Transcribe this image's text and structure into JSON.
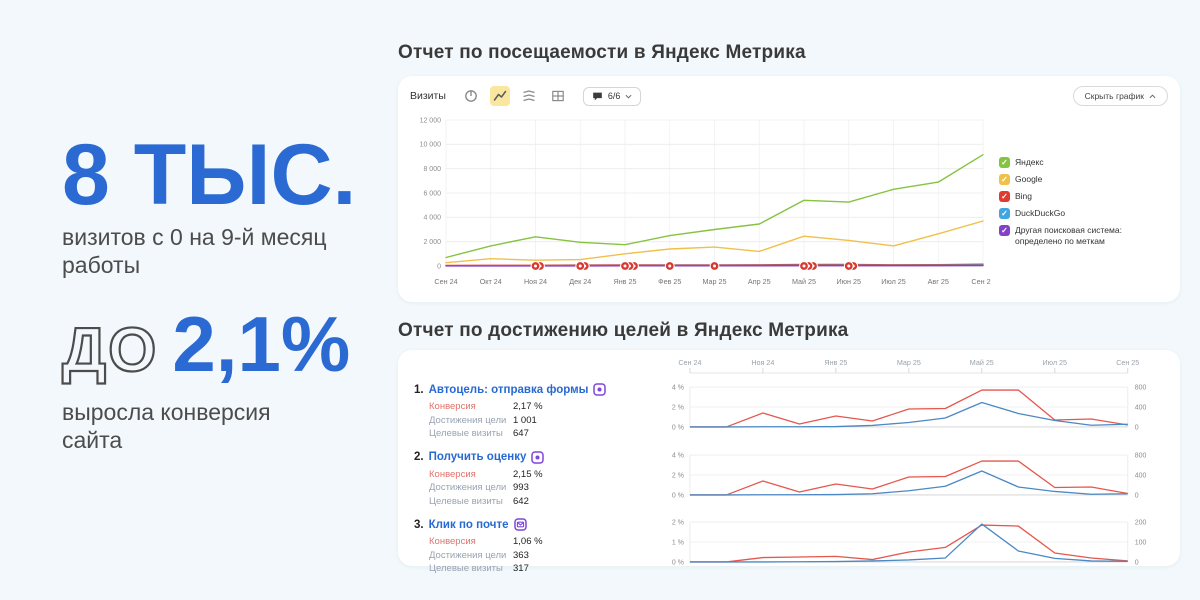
{
  "page": {
    "bg_color": "#f2f8fb",
    "accent_blue": "#2b6ad3"
  },
  "stats": {
    "visits": {
      "value": "8 ТЫС.",
      "caption": "визитов с 0 на 9-й месяц работы"
    },
    "conversion": {
      "prefix": "до",
      "value": "2,1%",
      "caption": "выросла конверсия сайта"
    }
  },
  "visits_report": {
    "title": "Отчет по посещаемости в Яндекс Метрика",
    "metric_label": "Визиты",
    "comments_badge": "6/6",
    "hide_chart_button": "Скрыть график"
  },
  "goals_report": {
    "title": "Отчет по достижению целей в Яндекс Метрика",
    "months": [
      "Сен 24",
      "Ноя 24",
      "Янв 25",
      "Мар 25",
      "Май 25",
      "Июл 25",
      "Сен 25"
    ],
    "goals": [
      {
        "num": "1.",
        "name": "Автоцель: отправка формы",
        "metrics": [
          {
            "label": "Конверсия",
            "value": "2,17 %"
          },
          {
            "label": "Достижения цели",
            "value": "1 001"
          },
          {
            "label": "Целевые визиты",
            "value": "647"
          }
        ]
      },
      {
        "num": "2.",
        "name": "Получить оценку",
        "metrics": [
          {
            "label": "Конверсия",
            "value": "2,15 %"
          },
          {
            "label": "Достижения цели",
            "value": "993"
          },
          {
            "label": "Целевые визиты",
            "value": "642"
          }
        ]
      },
      {
        "num": "3.",
        "name": "Клик по почте",
        "metrics": [
          {
            "label": "Конверсия",
            "value": "1,06 %"
          },
          {
            "label": "Достижения цели",
            "value": "363"
          },
          {
            "label": "Целевые визиты",
            "value": "317"
          }
        ]
      }
    ]
  },
  "chart_data": [
    {
      "kind": "big",
      "type": "line",
      "title": "Визиты",
      "x_labels": [
        "Сен 24",
        "Окт 24",
        "Ноя 24",
        "Дек 24",
        "Янв 25",
        "Фев 25",
        "Мар 25",
        "Апр 25",
        "Май 25",
        "Июн 25",
        "Июл 25",
        "Авг 25",
        "Сен 25"
      ],
      "ymax": 12000,
      "yticks": [
        {
          "v": 0,
          "label": "0"
        },
        {
          "v": 2000,
          "label": "2 000"
        },
        {
          "v": 4000,
          "label": "4 000"
        },
        {
          "v": 6000,
          "label": "6 000"
        },
        {
          "v": 8000,
          "label": "8 000"
        },
        {
          "v": 10000,
          "label": "10 000"
        },
        {
          "v": 12000,
          "label": "12 000"
        }
      ],
      "series": [
        {
          "name": "Яндекс",
          "color": "#85c341",
          "values": [
            700,
            1650,
            2400,
            1950,
            1750,
            2500,
            3000,
            3450,
            5400,
            5250,
            6300,
            6900,
            9150
          ]
        },
        {
          "name": "Google",
          "color": "#f0c04a",
          "values": [
            270,
            600,
            480,
            530,
            1000,
            1400,
            1550,
            1200,
            2450,
            2100,
            1650,
            2650,
            3700
          ]
        },
        {
          "name": "Bing",
          "color": "#e03b30",
          "values": [
            40,
            60,
            60,
            70,
            80,
            90,
            90,
            100,
            130,
            120,
            100,
            110,
            150
          ]
        },
        {
          "name": "DuckDuckGo",
          "color": "#41a6df",
          "values": [
            15,
            25,
            25,
            30,
            35,
            40,
            40,
            45,
            60,
            55,
            50,
            55,
            70
          ]
        },
        {
          "name": "Другая поисковая система: определено по меткам",
          "color": "#8440c9",
          "values": [
            5,
            10,
            10,
            12,
            15,
            18,
            18,
            20,
            28,
            25,
            22,
            25,
            32
          ]
        }
      ],
      "comment_markers": [
        {
          "i": 2,
          "n": 2
        },
        {
          "i": 3,
          "n": 2
        },
        {
          "i": 4,
          "n": 3
        },
        {
          "i": 5,
          "n": 1
        },
        {
          "i": 6,
          "n": 1
        },
        {
          "i": 8,
          "n": 3
        },
        {
          "i": 9,
          "n": 2
        }
      ]
    },
    {
      "kind": "mini",
      "type": "line",
      "goal": "Автоцель: отправка формы",
      "left_max": 4,
      "left_ticks": [
        {
          "v": 4,
          "label": "4 %"
        },
        {
          "v": 2,
          "label": "2 %"
        },
        {
          "v": 0,
          "label": "0 %"
        }
      ],
      "right_max": 800,
      "right_ticks": [
        {
          "v": 800,
          "label": "800"
        },
        {
          "v": 400,
          "label": "400"
        },
        {
          "v": 0,
          "label": "0"
        }
      ],
      "series": [
        {
          "name": "Конверсия",
          "axis": "left",
          "color": "#e4574d",
          "values": [
            0,
            0,
            1.4,
            0.3,
            1.1,
            0.6,
            1.8,
            1.85,
            3.7,
            3.7,
            0.7,
            0.8,
            0.2
          ]
        },
        {
          "name": "Достижения цели",
          "axis": "right",
          "color": "#4b88c4",
          "values": [
            0,
            0,
            4,
            4,
            8,
            30,
            90,
            180,
            490,
            270,
            130,
            35,
            55
          ]
        }
      ]
    },
    {
      "kind": "mini",
      "type": "line",
      "goal": "Получить оценку",
      "left_max": 4,
      "left_ticks": [
        {
          "v": 4,
          "label": "4 %"
        },
        {
          "v": 2,
          "label": "2 %"
        },
        {
          "v": 0,
          "label": "0 %"
        }
      ],
      "right_max": 800,
      "right_ticks": [
        {
          "v": 800,
          "label": "800"
        },
        {
          "v": 400,
          "label": "400"
        },
        {
          "v": 0,
          "label": "0"
        }
      ],
      "series": [
        {
          "name": "Конверсия",
          "axis": "left",
          "color": "#e4574d",
          "values": [
            0,
            0,
            1.4,
            0.3,
            1.1,
            0.6,
            1.8,
            1.85,
            3.4,
            3.4,
            0.75,
            0.8,
            0.15
          ]
        },
        {
          "name": "Достижения цели",
          "axis": "right",
          "color": "#4b88c4",
          "values": [
            0,
            0,
            4,
            4,
            8,
            25,
            85,
            175,
            480,
            160,
            70,
            15,
            25
          ]
        }
      ]
    },
    {
      "kind": "mini",
      "type": "line",
      "goal": "Клик по почте",
      "left_max": 2,
      "left_ticks": [
        {
          "v": 2,
          "label": "2 %"
        },
        {
          "v": 1,
          "label": "1 %"
        },
        {
          "v": 0,
          "label": "0 %"
        }
      ],
      "right_max": 200,
      "right_ticks": [
        {
          "v": 200,
          "label": "200"
        },
        {
          "v": 100,
          "label": "100"
        },
        {
          "v": 0,
          "label": "0"
        }
      ],
      "series": [
        {
          "name": "Конверсия",
          "axis": "left",
          "color": "#e4574d",
          "values": [
            0,
            0,
            0.22,
            0.25,
            0.28,
            0.12,
            0.5,
            0.73,
            1.85,
            1.8,
            0.45,
            0.2,
            0.05
          ]
        },
        {
          "name": "Достижения цели",
          "axis": "right",
          "color": "#4b88c4",
          "values": [
            0,
            0,
            0,
            1,
            2,
            5,
            10,
            20,
            190,
            55,
            18,
            5,
            3
          ]
        }
      ]
    }
  ]
}
